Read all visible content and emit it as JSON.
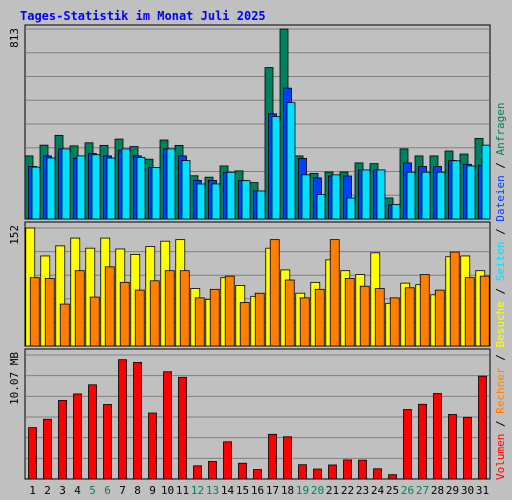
{
  "chart_data": {
    "type": "bar",
    "title": "Tages-Statistik im Monat Juli 2025",
    "x": [
      "1",
      "2",
      "3",
      "4",
      "5",
      "6",
      "7",
      "8",
      "9",
      "10",
      "11",
      "12",
      "13",
      "14",
      "15",
      "16",
      "17",
      "18",
      "19",
      "20",
      "21",
      "22",
      "23",
      "24",
      "25",
      "26",
      "27",
      "28",
      "29",
      "30",
      "31"
    ],
    "weekend_days": [
      "5",
      "6",
      "12",
      "13",
      "19",
      "20",
      "26",
      "27"
    ],
    "panels": [
      {
        "id": "top",
        "ymax_label": "813",
        "ymax": 813,
        "series": [
          {
            "name": "Anfragen",
            "color": "#008060",
            "values": [
              270,
              316,
              358,
              313,
              326,
              315,
              342,
              310,
              256,
              338,
              315,
              185,
              179,
              227,
              206,
              156,
              648,
              813,
              270,
              195,
              201,
              201,
              240,
              237,
              90,
              300,
              270,
              270,
              291,
              278,
              345
            ]
          },
          {
            "name": "Dateien",
            "color": "#0040ff",
            "values": [
              225,
              270,
              300,
              260,
              280,
              270,
              295,
              270,
              220,
              300,
              270,
              165,
              165,
              200,
              164,
              120,
              450,
              560,
              259,
              176,
              184,
              184,
              210,
              210,
              60,
              240,
              225,
              225,
              250,
              234,
              230
            ]
          },
          {
            "name": "Seiten",
            "color": "#00e0ff",
            "values": [
              222,
              261,
              300,
              270,
              275,
              261,
              300,
              263,
              220,
              300,
              250,
              150,
              150,
              200,
              164,
              120,
              438,
              498,
              189,
              105,
              189,
              90,
              210,
              210,
              62,
              200,
              200,
              200,
              249,
              227,
              316
            ]
          }
        ]
      },
      {
        "id": "middle",
        "ymax_label": "152",
        "ymax": 152,
        "series": [
          {
            "name": "Besuche",
            "color": "#ffff00",
            "values": [
              152,
              116,
              129,
              139,
              126,
              139,
              125,
              118,
              128,
              135,
              137,
              74,
              60,
              88,
              78,
              64,
              126,
              98,
              68,
              82,
              111,
              97,
              92,
              120,
              55,
              81,
              79,
              66,
              115,
              116,
              97
            ]
          },
          {
            "name": "Rechner",
            "color": "#ff8000",
            "values": [
              88,
              87,
              54,
              97,
              63,
              102,
              82,
              72,
              84,
              97,
              97,
              62,
              73,
              90,
              56,
              68,
              137,
              85,
              62,
              73,
              137,
              87,
              77,
              74,
              62,
              75,
              92,
              72,
              121,
              88,
              90
            ]
          }
        ]
      },
      {
        "id": "bottom",
        "ymax_label": "10.07 MB",
        "ymax": 10.07,
        "series": [
          {
            "name": "Volumen",
            "color": "#ff0000",
            "values": [
              4.17,
              4.85,
              6.38,
              6.91,
              7.65,
              6.05,
              9.69,
              9.47,
              5.36,
              8.71,
              8.26,
              1.07,
              1.43,
              3.02,
              1.28,
              0.77,
              3.63,
              3.43,
              1.16,
              0.81,
              1.14,
              1.55,
              1.53,
              0.83,
              0.35,
              5.64,
              6.07,
              6.94,
              5.24,
              5.01,
              8.35
            ]
          }
        ]
      }
    ],
    "legend": {
      "placement": "right-vertical",
      "entries": [
        {
          "text": "Volumen",
          "color": "#ff0000"
        },
        {
          "text": " / ",
          "color": "#000000"
        },
        {
          "text": "Rechner",
          "color": "#ff8000"
        },
        {
          "text": " / ",
          "color": "#000000"
        },
        {
          "text": "Besuche",
          "color": "#ffff00"
        },
        {
          "text": " / ",
          "color": "#000000"
        },
        {
          "text": "Seiten",
          "color": "#00e0ff"
        },
        {
          "text": " / ",
          "color": "#000000"
        },
        {
          "text": "Dateien",
          "color": "#0040ff"
        },
        {
          "text": " / ",
          "color": "#000000"
        },
        {
          "text": "Anfragen",
          "color": "#008060"
        }
      ]
    },
    "colors": {
      "background": "#c0c0c0",
      "title": "#0000ff",
      "grid": "#808080",
      "weekday_label": "#000000",
      "weekend_label": "#008060"
    },
    "grid": true
  }
}
